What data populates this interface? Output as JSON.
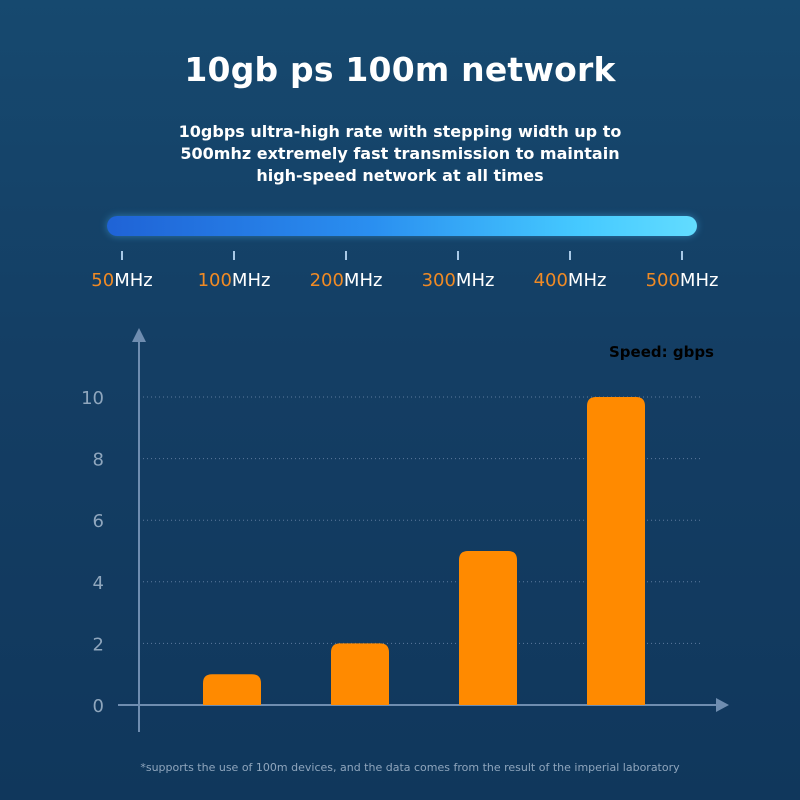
{
  "header": {
    "title": "10gb ps 100m network",
    "subtitle_lines": [
      "10gbps ultra-high rate with stepping width up to",
      "500mhz extremely fast transmission to maintain",
      "high-speed network at all times"
    ]
  },
  "frequency_scale": [
    {
      "value": "50",
      "unit": "MHz"
    },
    {
      "value": "100",
      "unit": "MHz"
    },
    {
      "value": "200",
      "unit": "MHz"
    },
    {
      "value": "300",
      "unit": "MHz"
    },
    {
      "value": "400",
      "unit": "MHz"
    },
    {
      "value": "500",
      "unit": "MHz"
    }
  ],
  "chart_data": {
    "type": "bar",
    "ylabel": "Speed: gbps",
    "values": [
      1,
      2,
      5,
      10
    ],
    "ylim": [
      0,
      10
    ],
    "yticks": [
      "0",
      "2",
      "4",
      "6",
      "8",
      "10"
    ],
    "grid": true,
    "bar_color": "#ff8a00"
  },
  "footnote": "*supports the use of 100m devices, and the data comes from the result of the imperial laboratory",
  "colors": {
    "accent_orange": "#f08a24",
    "bar_orange": "#ff8a00",
    "background": "#143e64"
  }
}
